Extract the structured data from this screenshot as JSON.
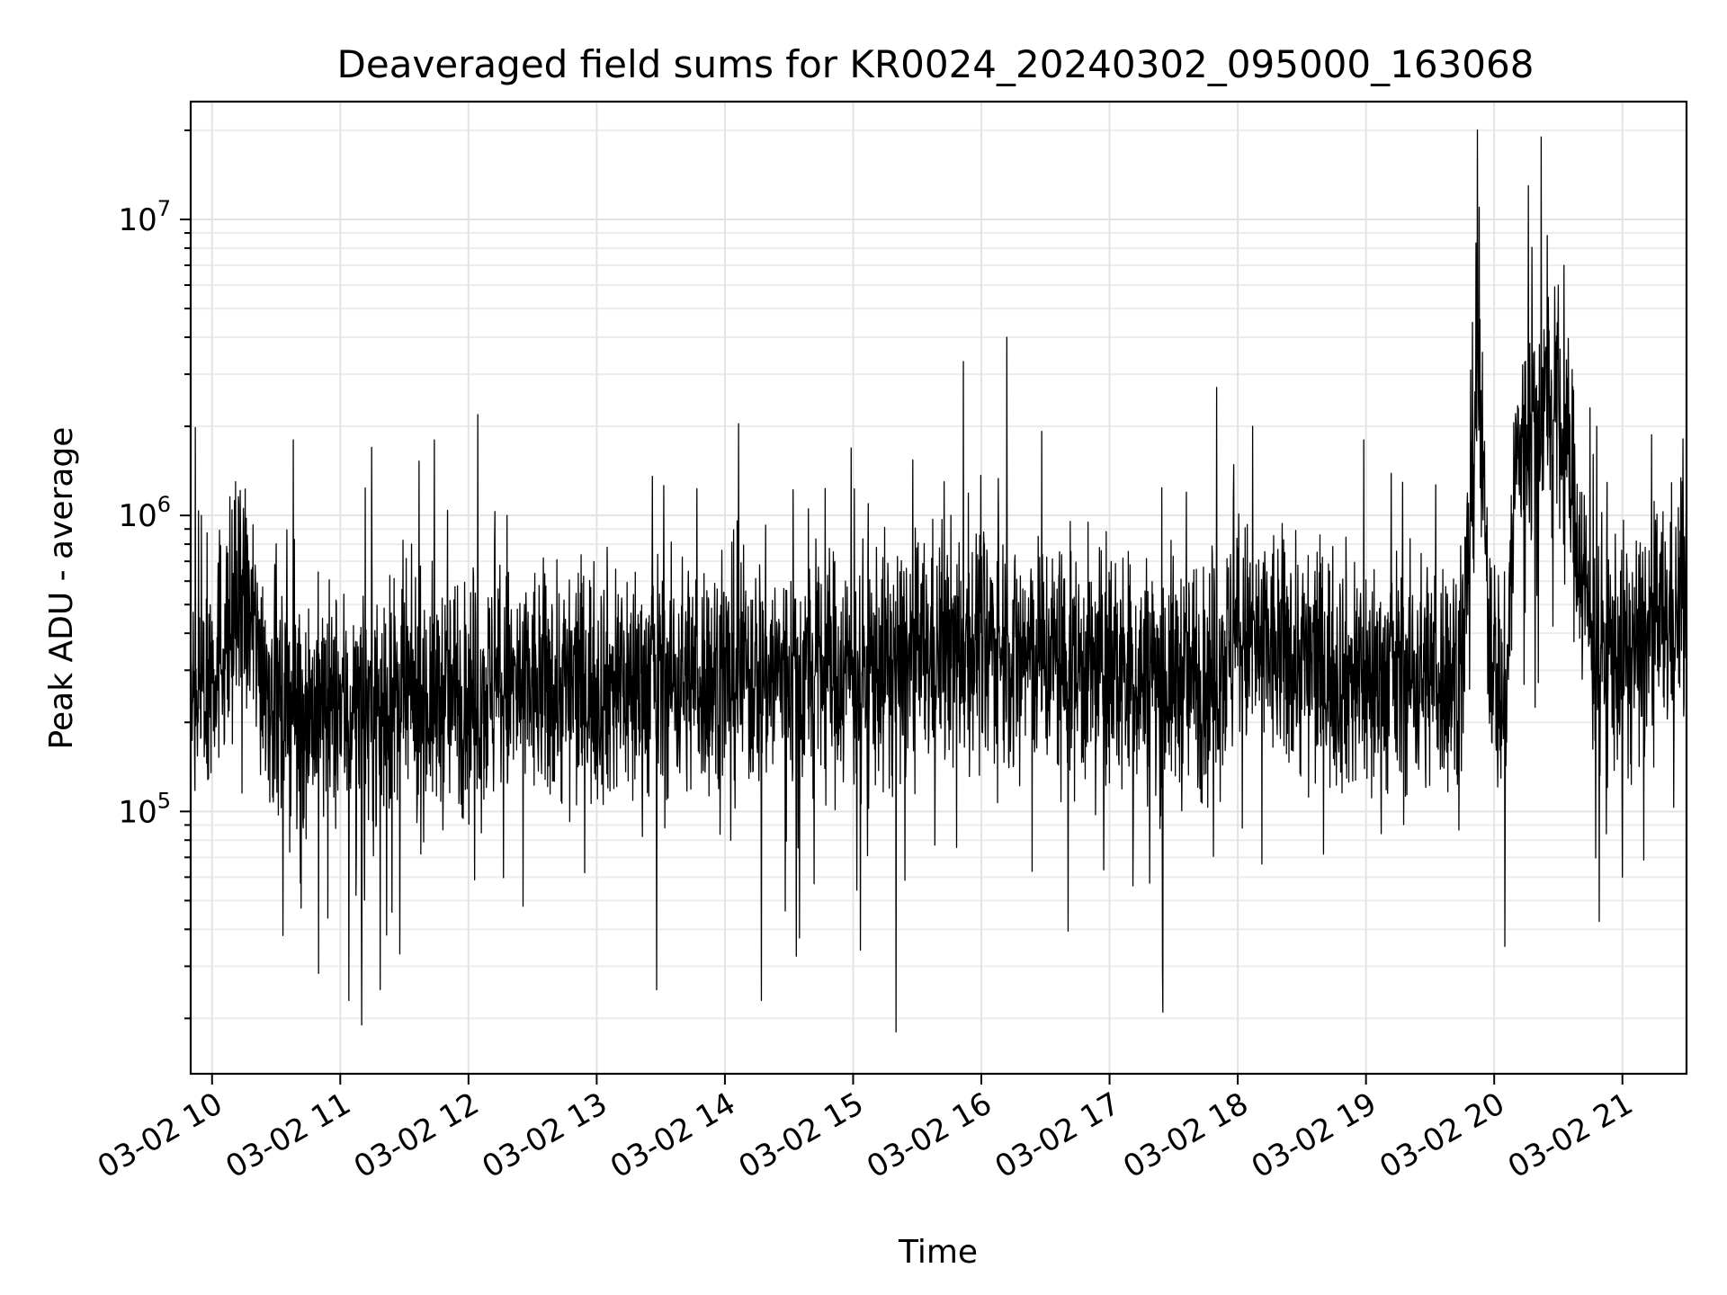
{
  "chart_data": {
    "type": "line",
    "title": "Deaveraged field sums for KR0024_20240302_095000_163068",
    "xlabel": "Time",
    "ylabel": "Peak ADU - average",
    "x_axis": {
      "type": "time",
      "range": [
        "2024-03-02T09:50",
        "2024-03-02T21:30"
      ],
      "tick_labels": [
        "03-02 10",
        "03-02 11",
        "03-02 12",
        "03-02 13",
        "03-02 14",
        "03-02 15",
        "03-02 16",
        "03-02 17",
        "03-02 18",
        "03-02 19",
        "03-02 20",
        "03-02 21"
      ],
      "tick_rotation_deg": 30
    },
    "y_axis": {
      "scale": "log",
      "range": [
        13000,
        25000000
      ],
      "major_ticks": [
        100000,
        1000000,
        10000000
      ],
      "tick_labels": [
        {
          "base": "10",
          "exp": "5"
        },
        {
          "base": "10",
          "exp": "6"
        },
        {
          "base": "10",
          "exp": "7"
        }
      ]
    },
    "grid": "on (major and minor)",
    "legend": "none",
    "line_color": "#000000",
    "series": [
      {
        "style": "dense noisy time series; baseline values estimated per interval",
        "baseline_points": [
          {
            "t": "2024-03-02T09:50",
            "y": 250000
          },
          {
            "t": "2024-03-02T10:15",
            "y": 500000
          },
          {
            "t": "2024-03-02T10:30",
            "y": 230000
          },
          {
            "t": "2024-03-02T11:00",
            "y": 220000
          },
          {
            "t": "2024-03-02T12:00",
            "y": 250000
          },
          {
            "t": "2024-03-02T13:00",
            "y": 270000
          },
          {
            "t": "2024-03-02T14:00",
            "y": 290000
          },
          {
            "t": "2024-03-02T15:00",
            "y": 300000
          },
          {
            "t": "2024-03-02T15:30",
            "y": 330000
          },
          {
            "t": "2024-03-02T16:00",
            "y": 380000
          },
          {
            "t": "2024-03-02T17:00",
            "y": 290000
          },
          {
            "t": "2024-03-02T17:45",
            "y": 280000
          },
          {
            "t": "2024-03-02T18:00",
            "y": 380000
          },
          {
            "t": "2024-03-02T19:00",
            "y": 280000
          },
          {
            "t": "2024-03-02T19:45",
            "y": 300000
          },
          {
            "t": "2024-03-02T19:52",
            "y": 3000000
          },
          {
            "t": "2024-03-02T19:58",
            "y": 400000
          },
          {
            "t": "2024-03-02T20:05",
            "y": 200000
          },
          {
            "t": "2024-03-02T20:10",
            "y": 1500000
          },
          {
            "t": "2024-03-02T20:25",
            "y": 2500000
          },
          {
            "t": "2024-03-02T20:35",
            "y": 1500000
          },
          {
            "t": "2024-03-02T20:45",
            "y": 400000
          },
          {
            "t": "2024-03-02T21:00",
            "y": 330000
          },
          {
            "t": "2024-03-02T21:30",
            "y": 500000
          }
        ],
        "notable_values": [
          {
            "t": "2024-03-02T09:55",
            "y": 1000000
          },
          {
            "t": "2024-03-02T10:11",
            "y": 1300000
          },
          {
            "t": "2024-03-02T10:38",
            "y": 1800000
          },
          {
            "t": "2024-03-02T11:04",
            "y": 23000
          },
          {
            "t": "2024-03-02T11:10",
            "y": 19000
          },
          {
            "t": "2024-03-02T11:44",
            "y": 1800000
          },
          {
            "t": "2024-03-02T12:18",
            "y": 1000000
          },
          {
            "t": "2024-03-02T13:28",
            "y": 25000
          },
          {
            "t": "2024-03-02T14:17",
            "y": 23000
          },
          {
            "t": "2024-03-02T15:20",
            "y": 18000
          },
          {
            "t": "2024-03-02T16:12",
            "y": 4000000
          },
          {
            "t": "2024-03-02T17:25",
            "y": 21000
          },
          {
            "t": "2024-03-02T18:07",
            "y": 2000000
          },
          {
            "t": "2024-03-02T18:59",
            "y": 1800000
          },
          {
            "t": "2024-03-02T19:53",
            "y": 11000000
          },
          {
            "t": "2024-03-02T20:05",
            "y": 35000
          },
          {
            "t": "2024-03-02T20:16",
            "y": 13000000
          },
          {
            "t": "2024-03-02T20:22",
            "y": 19000000
          },
          {
            "t": "2024-03-02T20:30",
            "y": 6000000
          },
          {
            "t": "2024-03-02T20:48",
            "y": 2000000
          },
          {
            "t": "2024-03-02T21:00",
            "y": 60000
          },
          {
            "t": "2024-03-02T21:28",
            "y": 1300000
          }
        ]
      }
    ]
  }
}
